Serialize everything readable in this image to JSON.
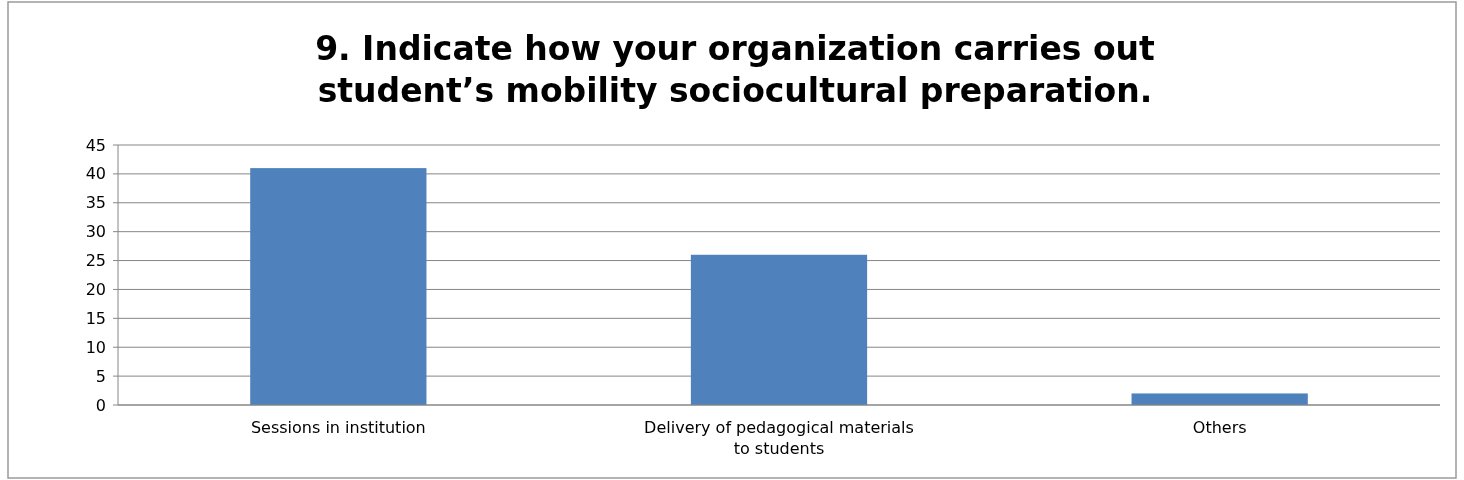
{
  "chart_data": {
    "type": "bar",
    "title": "9. Indicate how your organization carries out student’s mobility sociocultural preparation.",
    "categories": [
      "Sessions in institution",
      "Delivery of pedagogical materials to students",
      "Others"
    ],
    "values": [
      41,
      26,
      2
    ],
    "color": "#4f81bd",
    "ylim": [
      0,
      45
    ],
    "yticks": [
      0,
      5,
      10,
      15,
      20,
      25,
      30,
      35,
      40,
      45
    ],
    "grid": "y"
  }
}
